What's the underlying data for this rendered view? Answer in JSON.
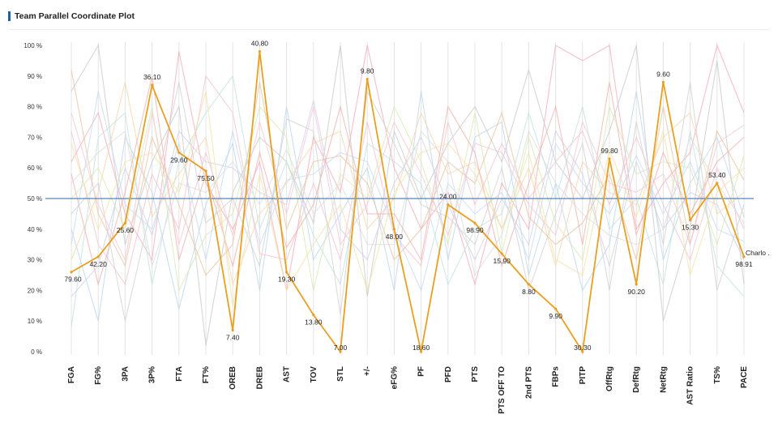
{
  "title": "Team Parallel Coordinate Plot",
  "chart_data": {
    "type": "line",
    "title": "Team Parallel Coordinate Plot",
    "categories": [
      "FGA",
      "FG%",
      "3PA",
      "3P%",
      "FTA",
      "FT%",
      "OREB",
      "DREB",
      "AST",
      "TOV",
      "STL",
      "+/-",
      "eFG%",
      "PF",
      "PFD",
      "PTS",
      "PTS OFF TO",
      "2nd PTS",
      "FBPs",
      "PITP",
      "OffRtg",
      "DefRtg",
      "NetRtg",
      "AST Ratio",
      "TS%",
      "PACE"
    ],
    "yticks": [
      "0 %",
      "10 %",
      "20 %",
      "30 %",
      "40 %",
      "50 %",
      "60 %",
      "70 %",
      "80 %",
      "90 %",
      "100 %"
    ],
    "ylim": [
      0,
      100
    ],
    "reference_line": 50,
    "highlight": {
      "name": "Charlo .",
      "color": "#e8a020",
      "values": [
        26,
        31,
        42,
        87,
        65,
        59,
        7,
        98,
        26,
        12,
        0,
        89,
        40,
        0,
        48,
        42,
        32,
        22,
        14,
        0,
        63,
        22,
        88,
        43,
        55,
        31
      ],
      "labels": [
        "79.60",
        "42.20",
        "25.60",
        "36.10",
        "29.60",
        "75.50",
        "7.40",
        "40.80",
        "19.30",
        "13.80",
        "7.00",
        "9.80",
        "48.00",
        "18.60",
        "24.00",
        "98.90",
        "15.90",
        "8.80",
        "9.90",
        "30.30",
        "99.80",
        "90.20",
        "9.60",
        "15.30",
        "53.40",
        "98.91"
      ]
    },
    "background_series": [
      {
        "color": "#f4a9b8",
        "values": [
          62,
          78,
          45,
          30,
          98,
          55,
          40,
          62,
          20,
          70,
          52,
          100,
          60,
          40,
          52,
          22,
          55,
          40,
          100,
          95,
          100,
          40,
          55,
          65,
          100,
          78
        ]
      },
      {
        "color": "#b9d6ee",
        "values": [
          40,
          10,
          70,
          52,
          14,
          48,
          68,
          20,
          80,
          30,
          45,
          60,
          20,
          85,
          30,
          70,
          75,
          25,
          55,
          20,
          35,
          85,
          30,
          55,
          70,
          44
        ]
      },
      {
        "color": "#c8c8c8",
        "values": [
          85,
          100,
          35,
          62,
          80,
          2,
          52,
          70,
          62,
          42,
          100,
          18,
          72,
          50,
          68,
          80,
          62,
          92,
          62,
          50,
          72,
          100,
          10,
          40,
          95,
          22
        ]
      },
      {
        "color": "#f5d6a8",
        "values": [
          30,
          52,
          88,
          44,
          58,
          70,
          22,
          45,
          55,
          68,
          72,
          40,
          50,
          78,
          58,
          62,
          40,
          60,
          28,
          62,
          52,
          48,
          70,
          78,
          45,
          52
        ]
      },
      {
        "color": "#f7c0cc",
        "values": [
          72,
          35,
          22,
          58,
          40,
          90,
          78,
          32,
          30,
          55,
          30,
          75,
          38,
          28,
          75,
          48,
          68,
          50,
          62,
          72,
          48,
          70,
          48,
          30,
          60,
          40
        ]
      },
      {
        "color": "#d8e8b0",
        "values": [
          50,
          60,
          40,
          80,
          20,
          38,
          45,
          80,
          70,
          20,
          58,
          50,
          80,
          62,
          35,
          78,
          32,
          70,
          42,
          30,
          80,
          58,
          62,
          60,
          35,
          64
        ]
      },
      {
        "color": "#cfcfe8",
        "values": [
          18,
          28,
          60,
          38,
          72,
          62,
          60,
          52,
          48,
          82,
          40,
          30,
          55,
          70,
          48,
          30,
          50,
          35,
          72,
          58,
          28,
          62,
          40,
          52,
          48,
          30
        ]
      },
      {
        "color": "#e9c2a0",
        "values": [
          92,
          45,
          28,
          70,
          48,
          25,
          35,
          88,
          40,
          62,
          64,
          55,
          30,
          40,
          62,
          55,
          78,
          44,
          35,
          42,
          58,
          30,
          80,
          35,
          72,
          56
        ]
      },
      {
        "color": "#bfe3e0",
        "values": [
          8,
          70,
          78,
          22,
          62,
          78,
          90,
          40,
          62,
          38,
          22,
          68,
          62,
          55,
          22,
          40,
          45,
          78,
          50,
          80,
          40,
          50,
          22,
          72,
          28,
          18
        ]
      },
      {
        "color": "#f0b0a8",
        "values": [
          58,
          22,
          52,
          90,
          30,
          58,
          28,
          65,
          34,
          48,
          80,
          45,
          45,
          30,
          80,
          65,
          28,
          55,
          80,
          35,
          88,
          38,
          65,
          45,
          62,
          70
        ]
      },
      {
        "color": "#d0d0d0",
        "values": [
          45,
          55,
          10,
          48,
          88,
          42,
          50,
          28,
          76,
          72,
          12,
          85,
          68,
          48,
          44,
          35,
          60,
          20,
          45,
          68,
          20,
          75,
          35,
          88,
          20,
          48
        ]
      },
      {
        "color": "#f3e2a6",
        "values": [
          68,
          40,
          62,
          65,
          52,
          85,
          15,
          58,
          20,
          35,
          48,
          20,
          52,
          65,
          68,
          58,
          40,
          65,
          30,
          25,
          66,
          44,
          72,
          25,
          52,
          60
        ]
      },
      {
        "color": "#c6d9f2",
        "values": [
          35,
          85,
          48,
          40,
          68,
          30,
          72,
          35,
          56,
          58,
          65,
          62,
          40,
          20,
          55,
          45,
          52,
          30,
          68,
          55,
          45,
          64,
          45,
          62,
          40,
          36
        ]
      },
      {
        "color": "#f6c6d6",
        "values": [
          78,
          48,
          30,
          78,
          35,
          65,
          38,
          75,
          45,
          80,
          35,
          48,
          75,
          58,
          38,
          68,
          65,
          48,
          38,
          75,
          55,
          52,
          58,
          35,
          68,
          74
        ]
      },
      {
        "color": "#dcdcdc",
        "values": [
          55,
          65,
          72,
          28,
          55,
          52,
          62,
          48,
          66,
          45,
          55,
          35,
          35,
          72,
          62,
          25,
          38,
          72,
          55,
          45,
          38,
          35,
          40,
          70,
          55,
          42
        ]
      }
    ]
  }
}
